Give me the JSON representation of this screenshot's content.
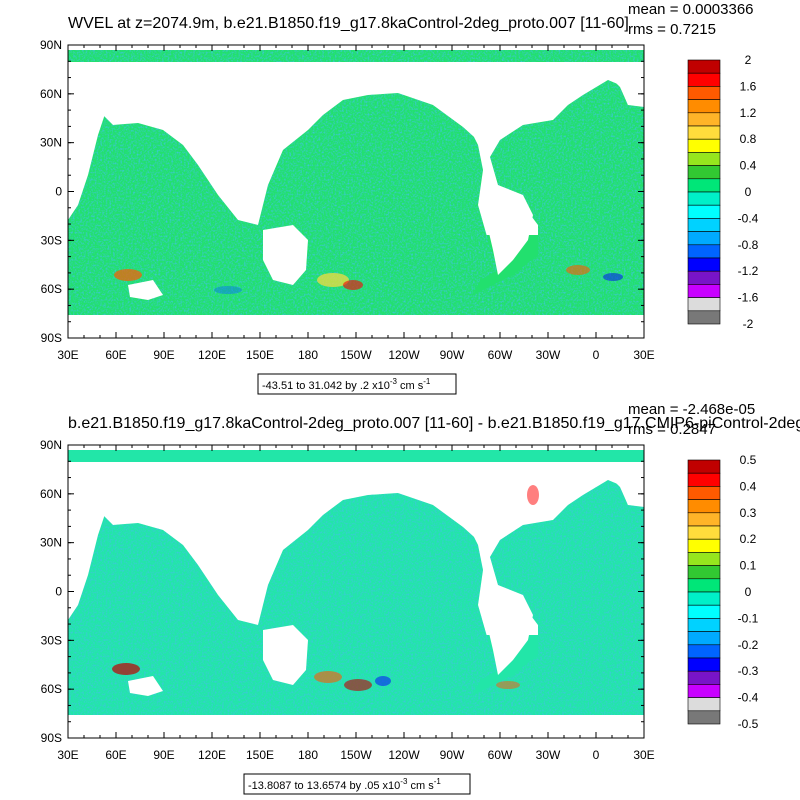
{
  "chart_data": [
    {
      "type": "heatmap",
      "title": "WVEL at z=2074.9m, b.e21.B1850.f19_g17.8kaControl-2deg_proto.007 [11-60]",
      "mean_label": "mean = 0.0003366",
      "rms_label": "rms = 0.7215",
      "x_tick_labels": [
        "30E",
        "60E",
        "90E",
        "120E",
        "150E",
        "180",
        "150W",
        "120W",
        "90W",
        "60W",
        "30W",
        "0",
        "30E"
      ],
      "y_tick_labels": [
        "90N",
        "60N",
        "30N",
        "0",
        "30S",
        "60S",
        "90S"
      ],
      "colorbar_labels": [
        "2",
        "1.6",
        "1.2",
        "0.8",
        "0.4",
        "0",
        "-0.4",
        "-0.8",
        "-1.2",
        "-1.6",
        "-2"
      ],
      "colorbar_colors": [
        "#c00000",
        "#ff0000",
        "#ff5a00",
        "#ff8c00",
        "#ffb428",
        "#ffdc3c",
        "#ffff00",
        "#96e61e",
        "#32c832",
        "#00e678",
        "#00f0c8",
        "#00ffff",
        "#00d2ff",
        "#00aaff",
        "#0064ff",
        "#0000ff",
        "#7814c8",
        "#c800ff",
        "#dcdcdc",
        "#787878"
      ],
      "range_label": "-43.51 to 31.042 by .2 x10",
      "range_exp": "-3",
      "range_units": " cm s",
      "range_unit_exp": "-1"
    },
    {
      "type": "heatmap",
      "title": "b.e21.B1850.f19_g17.8kaControl-2deg_proto.007 [11-60] - b.e21.B1850.f19_g17.CMIP6-piControl-2deg",
      "mean_label": "mean = -2.468e-05",
      "rms_label": "rms = 0.2847",
      "x_tick_labels": [
        "30E",
        "60E",
        "90E",
        "120E",
        "150E",
        "180",
        "150W",
        "120W",
        "90W",
        "60W",
        "30W",
        "0",
        "30E"
      ],
      "y_tick_labels": [
        "90N",
        "60N",
        "30N",
        "0",
        "30S",
        "60S",
        "90S"
      ],
      "colorbar_labels": [
        "0.5",
        "0.4",
        "0.3",
        "0.2",
        "0.1",
        "0",
        "-0.1",
        "-0.2",
        "-0.3",
        "-0.4",
        "-0.5"
      ],
      "colorbar_colors": [
        "#c00000",
        "#ff0000",
        "#ff5a00",
        "#ff8c00",
        "#ffb428",
        "#ffdc3c",
        "#ffff00",
        "#96e61e",
        "#32c832",
        "#00e678",
        "#00f0c8",
        "#00ffff",
        "#00d2ff",
        "#00aaff",
        "#0064ff",
        "#0000ff",
        "#7814c8",
        "#c800ff",
        "#dcdcdc",
        "#787878"
      ],
      "range_label": "-13.8087 to 13.6574 by .05 x10",
      "range_exp": "-3",
      "range_units": " cm s",
      "range_unit_exp": "-1"
    }
  ]
}
